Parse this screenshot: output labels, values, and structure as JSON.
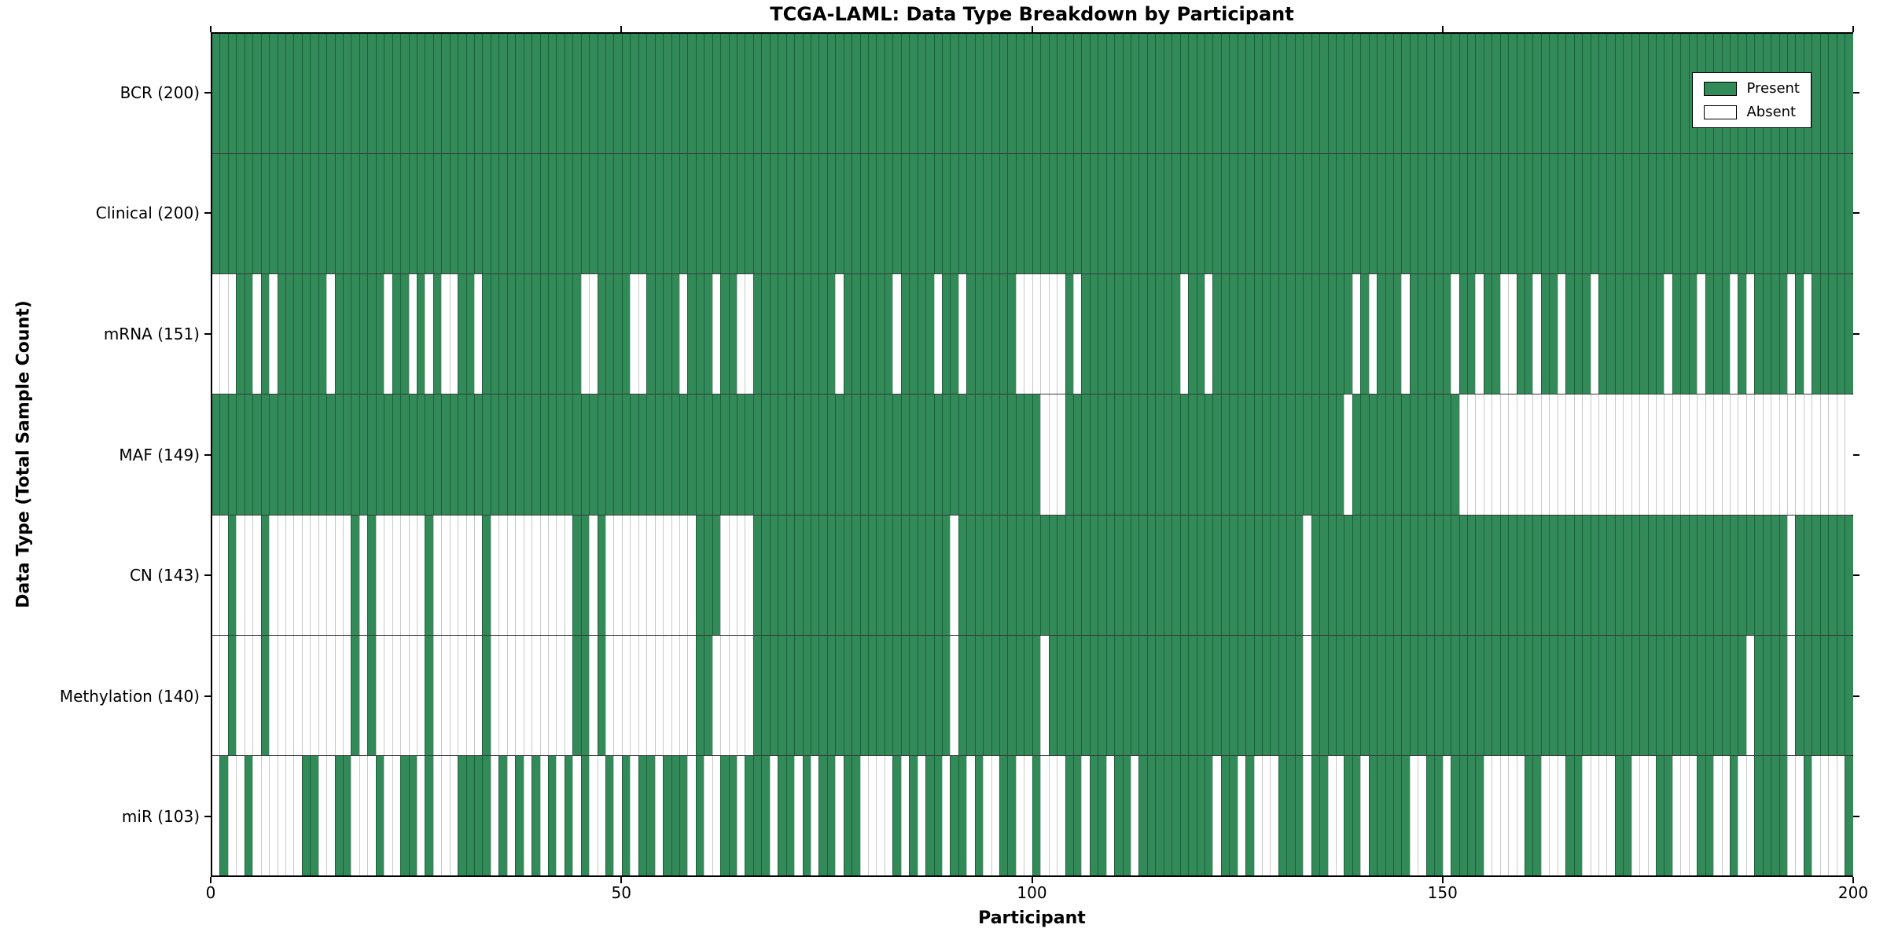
{
  "title": "TCGA-LAML: Data Type Breakdown by Participant",
  "chart_data": {
    "type": "heatmap",
    "title": "TCGA-LAML: Data Type Breakdown by Participant",
    "xlabel": "Participant",
    "ylabel": "Data Type (Total Sample Count)",
    "xlim": [
      0,
      200
    ],
    "x_ticks": [
      0,
      50,
      100,
      150,
      200
    ],
    "grid": "row-separators",
    "legend_position": "upper right",
    "legend": [
      {
        "label": "Present",
        "color": "#318a58"
      },
      {
        "label": "Absent",
        "color": "#ffffff"
      }
    ],
    "colors": {
      "present": "#318a58",
      "present_edge": "#1e5e3c",
      "absent": "#ffffff",
      "absent_edge": "#c9c9c9"
    },
    "rows": [
      {
        "name": "bcr",
        "label": "BCR (200)",
        "total": 200,
        "pattern": "11111111111111111111111111111111111111111111111111111111111111111111111111111111111111111111111111111111111111111111111111111111111111111111111111111111111111111111111111111111111111111111111111111111"
      },
      {
        "name": "clinical",
        "label": "Clinical (200)",
        "total": 200,
        "pattern": "11111111111111111111111111111111111111111111111111111111111111111111111111111111111111111111111111111111111111111111111111111111111111111111111111111111111111111111111111111111111111111111111111111111"
      },
      {
        "name": "mrna",
        "label": "mRNA (151)",
        "total": 151,
        "pattern": "00011010111111011111101101010011011111111111100111100111101110110011111111110111111011110110111111000000101111111111110110111111111111111110101110111110110110011011011101111111101110111010111101011111"
      },
      {
        "name": "maf",
        "label": "MAF (149)",
        "total": 149,
        "pattern": "11111111111111111111111111111111111111111111111111111111111111111111111111111111111111111111111111111000111111111111111111111111111111111101111111111111000000000000000000000000000000000000000000000000"
      },
      {
        "name": "cn",
        "label": "CN (143)",
        "total": 143,
        "pattern": "00100010000000000101000000100000010000000000110100000000000111000011111111111111111111111101111111111111111111111111111111111111111110111111111111111111111111111111111111111111111111111111111101111111"
      },
      {
        "name": "methylation",
        "label": "Methylation (140)",
        "total": 140,
        "pattern": "00100010000000000101000000100000010000000000110100000000000110000011111111111111111111111101111111111011111111111111111111111111111110111111111111111111111111111111111111111111111111111110111101111111"
      },
      {
        "name": "mir",
        "label": "miR (103)",
        "total": 103,
        "pattern": "01001000000110011000100110100011110101010101010010101101110100110111011010110110000101011011010011001000110110110111111111011010001110110011011111001101111000001100011000011000110001100100111100100001"
      }
    ]
  }
}
